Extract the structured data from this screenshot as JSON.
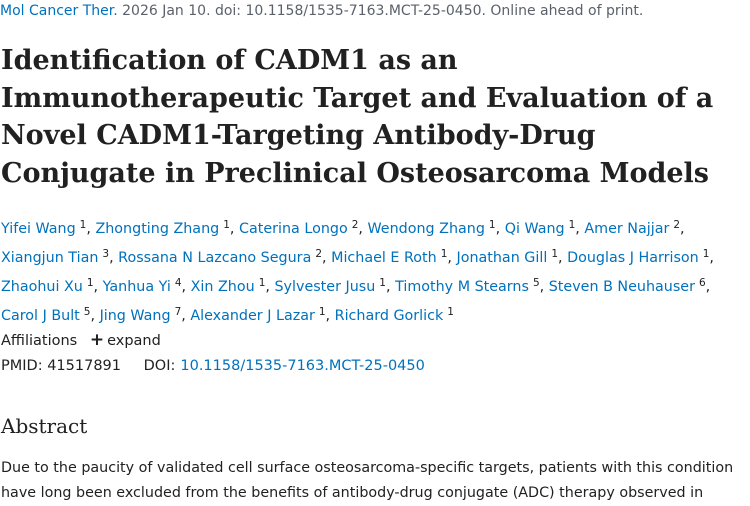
{
  "citation": {
    "journal": "Mol Cancer Ther.",
    "details": " 2026 Jan 10. doi: 10.1158/1535-7163.MCT-25-0450. Online ahead of print."
  },
  "title": "Identification of CADM1 as an Immunotherapeutic Target and Evaluation of a Novel CADM1-Targeting Antibody-Drug Conjugate in Preclinical Osteosarcoma Models",
  "authors": [
    {
      "name": "Yifei Wang",
      "aff": "1"
    },
    {
      "name": "Zhongting Zhang",
      "aff": "1"
    },
    {
      "name": "Caterina Longo",
      "aff": "2"
    },
    {
      "name": "Wendong Zhang",
      "aff": "1"
    },
    {
      "name": "Qi Wang",
      "aff": "1"
    },
    {
      "name": "Amer Najjar",
      "aff": "2"
    },
    {
      "name": "Xiangjun Tian",
      "aff": "3"
    },
    {
      "name": "Rossana N Lazcano Segura",
      "aff": "2"
    },
    {
      "name": "Michael E Roth",
      "aff": "1"
    },
    {
      "name": "Jonathan Gill",
      "aff": "1"
    },
    {
      "name": "Douglas J Harrison",
      "aff": "1"
    },
    {
      "name": "Zhaohui Xu",
      "aff": "1"
    },
    {
      "name": "Yanhua Yi",
      "aff": "4"
    },
    {
      "name": "Xin Zhou",
      "aff": "1"
    },
    {
      "name": "Sylvester Jusu",
      "aff": "1"
    },
    {
      "name": "Timothy M Stearns",
      "aff": "5"
    },
    {
      "name": "Steven B Neuhauser",
      "aff": "6"
    },
    {
      "name": "Carol J Bult",
      "aff": "5"
    },
    {
      "name": "Jing Wang",
      "aff": "7"
    },
    {
      "name": "Alexander J Lazar",
      "aff": "1"
    },
    {
      "name": "Richard Gorlick",
      "aff": "1"
    }
  ],
  "affiliations": {
    "label": "Affiliations",
    "toggle_icon": "+",
    "toggle_label": "expand"
  },
  "ids": {
    "pmid_label": "PMID:",
    "pmid": "41517891",
    "doi_label": "DOI:",
    "doi": "10.1158/1535-7163.MCT-25-0450"
  },
  "abstract": {
    "heading": "Abstract",
    "lines": [
      "Due to the paucity of validated cell surface osteosarcoma-specific targets, patients with this condition",
      "have long been excluded from the benefits of antibody-drug conjugate (ADC) therapy observed in"
    ]
  },
  "colors": {
    "link": "#0071bc",
    "text": "#212121",
    "muted": "#5b616b"
  }
}
